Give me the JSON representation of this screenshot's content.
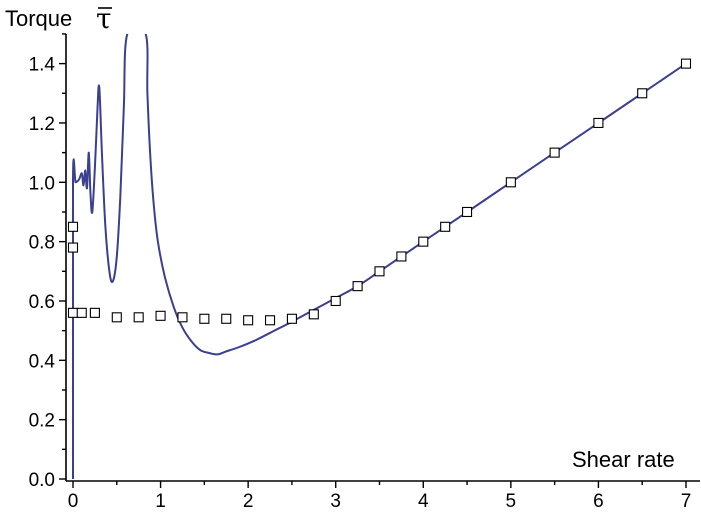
{
  "chart_data": {
    "type": "line",
    "xlabel": "Shear rate",
    "ylabel": "Torque",
    "ylabel_symbol": "τ",
    "xlim": [
      0,
      7
    ],
    "ylim": [
      0,
      1.5
    ],
    "x_ticks": [
      "0",
      "1",
      "2",
      "3",
      "4",
      "5",
      "6",
      "7"
    ],
    "y_ticks": [
      "0.0",
      "0.2",
      "0.4",
      "0.6",
      "0.8",
      "1.0",
      "1.2",
      "1.4"
    ],
    "grid": false,
    "legend": "none",
    "colors": {
      "line": "#3b3f8f",
      "markers": "#000000"
    },
    "series": [
      {
        "type": "line",
        "points": [
          [
            0.0,
            0.0
          ],
          [
            0.0,
            1.005
          ],
          [
            0.03,
            1.0
          ],
          [
            0.07,
            1.01
          ],
          [
            0.1,
            1.03
          ],
          [
            0.12,
            0.99
          ],
          [
            0.14,
            1.04
          ],
          [
            0.16,
            0.98
          ],
          [
            0.18,
            1.1
          ],
          [
            0.2,
            0.96
          ],
          [
            0.22,
            0.9
          ],
          [
            0.25,
            1.05
          ],
          [
            0.28,
            1.25
          ],
          [
            0.3,
            1.32
          ],
          [
            0.33,
            1.1
          ],
          [
            0.37,
            0.85
          ],
          [
            0.42,
            0.69
          ],
          [
            0.46,
            0.67
          ],
          [
            0.5,
            0.75
          ],
          [
            0.54,
            0.95
          ],
          [
            0.58,
            1.25
          ],
          [
            0.62,
            1.5
          ],
          [
            0.83,
            1.5
          ],
          [
            0.85,
            1.3
          ],
          [
            0.88,
            1.1
          ],
          [
            0.92,
            0.93
          ],
          [
            0.97,
            0.8
          ],
          [
            1.05,
            0.68
          ],
          [
            1.15,
            0.58
          ],
          [
            1.25,
            0.51
          ],
          [
            1.35,
            0.465
          ],
          [
            1.45,
            0.435
          ],
          [
            1.55,
            0.425
          ],
          [
            1.65,
            0.42
          ],
          [
            1.75,
            0.43
          ],
          [
            1.9,
            0.445
          ],
          [
            2.1,
            0.47
          ],
          [
            2.3,
            0.5
          ],
          [
            2.5,
            0.53
          ],
          [
            2.75,
            0.57
          ],
          [
            3.0,
            0.61
          ],
          [
            3.25,
            0.65
          ],
          [
            3.5,
            0.7
          ],
          [
            3.75,
            0.75
          ],
          [
            4.0,
            0.8
          ],
          [
            4.25,
            0.85
          ],
          [
            4.5,
            0.9
          ],
          [
            5.0,
            1.0
          ],
          [
            5.5,
            1.1
          ],
          [
            6.0,
            1.2
          ],
          [
            6.5,
            1.3
          ],
          [
            7.0,
            1.4
          ]
        ]
      },
      {
        "type": "scatter",
        "marker": "open-square",
        "points": [
          [
            0.0,
            0.85
          ],
          [
            0.0,
            0.78
          ],
          [
            0.0,
            0.56
          ],
          [
            0.1,
            0.56
          ],
          [
            0.25,
            0.56
          ],
          [
            0.5,
            0.545
          ],
          [
            0.75,
            0.545
          ],
          [
            1.0,
            0.55
          ],
          [
            1.25,
            0.545
          ],
          [
            1.5,
            0.54
          ],
          [
            1.75,
            0.54
          ],
          [
            2.0,
            0.535
          ],
          [
            2.25,
            0.535
          ],
          [
            2.5,
            0.54
          ],
          [
            2.75,
            0.555
          ],
          [
            3.0,
            0.6
          ],
          [
            3.25,
            0.65
          ],
          [
            3.5,
            0.7
          ],
          [
            3.75,
            0.75
          ],
          [
            4.0,
            0.8
          ],
          [
            4.25,
            0.85
          ],
          [
            4.5,
            0.9
          ],
          [
            5.0,
            1.0
          ],
          [
            5.5,
            1.1
          ],
          [
            6.0,
            1.2
          ],
          [
            6.5,
            1.3
          ],
          [
            7.0,
            1.4
          ]
        ]
      }
    ]
  }
}
